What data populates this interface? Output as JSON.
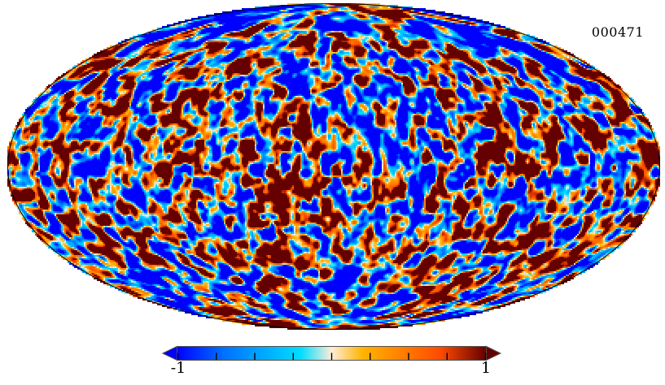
{
  "figure": {
    "label": "000471",
    "background": "#ffffff"
  },
  "map": {
    "projection": "mollweide",
    "outline_color": "#000000",
    "noise": {
      "seed": 471,
      "scale1": 10.5,
      "scale2": 21,
      "octave2_weight": 0.55,
      "gain": 2.6
    }
  },
  "colorbar": {
    "min_label": "-1",
    "max_label": "1",
    "tick_count": 9,
    "border_color": "#55514d",
    "tick_color": "#000000"
  },
  "chart_data": {
    "type": "heatmap",
    "title": "",
    "annotation": "000471",
    "projection": "mollweide",
    "colorbar_range": [
      -1,
      1
    ],
    "colorbar_labeled_ticks": [
      -1,
      1
    ],
    "colorbar_tick_count": 9,
    "colormap": {
      "name": "planck",
      "stops": [
        {
          "t": 0.0,
          "color": "#0000ff"
        },
        {
          "t": 0.15,
          "color": "#0070ff"
        },
        {
          "t": 0.4,
          "color": "#00ddff"
        },
        {
          "t": 0.5,
          "color": "#ffedd9"
        },
        {
          "t": 0.6,
          "color": "#ffb400"
        },
        {
          "t": 0.85,
          "color": "#ff4b00"
        },
        {
          "t": 1.0,
          "color": "#640000"
        }
      ]
    },
    "description": "Full-sky random CMB-like field shown in Mollweide projection, values saturating at -1 (deep blue) and +1 (dark red)"
  }
}
